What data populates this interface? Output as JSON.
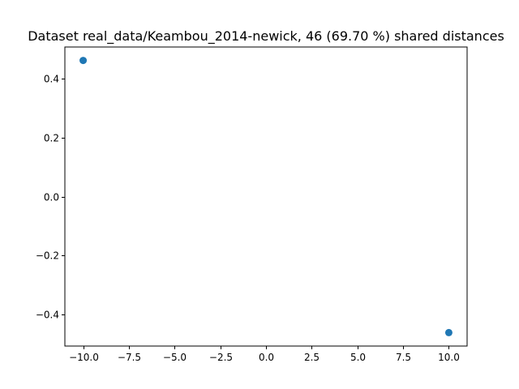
{
  "chart_data": {
    "type": "scatter",
    "title": "Dataset real_data/Keambou_2014-newick, 46 (69.70 %) shared distances",
    "xlabel": "",
    "ylabel": "",
    "xlim": [
      -11.0,
      11.0
    ],
    "ylim": [
      -0.5055,
      0.5055
    ],
    "x_ticks": [
      -10.0,
      -7.5,
      -5.0,
      -2.5,
      0.0,
      2.5,
      5.0,
      7.5,
      10.0
    ],
    "x_tick_labels": [
      "−10.0",
      "−7.5",
      "−5.0",
      "−2.5",
      "0.0",
      "2.5",
      "5.0",
      "7.5",
      "10.0"
    ],
    "y_ticks": [
      -0.4,
      -0.2,
      0.0,
      0.2,
      0.4
    ],
    "y_tick_labels": [
      "−0.4",
      "−0.2",
      "0.0",
      "0.2",
      "0.4"
    ],
    "grid": false,
    "series": [
      {
        "color": "#1f77b4",
        "points": [
          {
            "x": -10.0,
            "y": 0.46
          },
          {
            "x": 10.0,
            "y": -0.46
          }
        ]
      }
    ]
  }
}
